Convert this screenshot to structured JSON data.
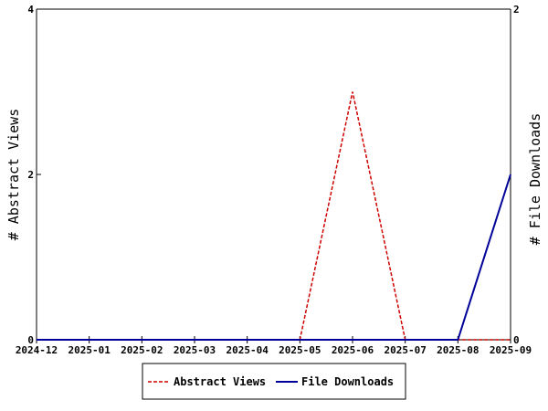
{
  "chart_data": {
    "type": "line",
    "title": "",
    "xlabel": "",
    "ylabel_left": "# Abstract Views",
    "ylabel_right": "# File Downloads",
    "x": [
      "2024-12",
      "2025-01",
      "2025-02",
      "2025-03",
      "2025-04",
      "2025-05",
      "2025-06",
      "2025-07",
      "2025-08",
      "2025-09"
    ],
    "ylim_left": [
      0,
      4
    ],
    "ylim_right": [
      0,
      2
    ],
    "yticks_left": [
      0,
      2,
      4
    ],
    "yticks_right": [
      0,
      2
    ],
    "grid": false,
    "legend_position": "bottom",
    "series": [
      {
        "name": "Abstract Views",
        "axis": "left",
        "color": "#cc0000",
        "style": "dashed",
        "values": [
          0,
          0,
          0,
          0,
          0,
          0,
          3,
          0,
          0,
          0
        ]
      },
      {
        "name": "File Downloads",
        "axis": "right",
        "color": "#000099",
        "style": "solid",
        "values": [
          0,
          0,
          0,
          0,
          0,
          0,
          0,
          0,
          0,
          1
        ]
      }
    ]
  }
}
